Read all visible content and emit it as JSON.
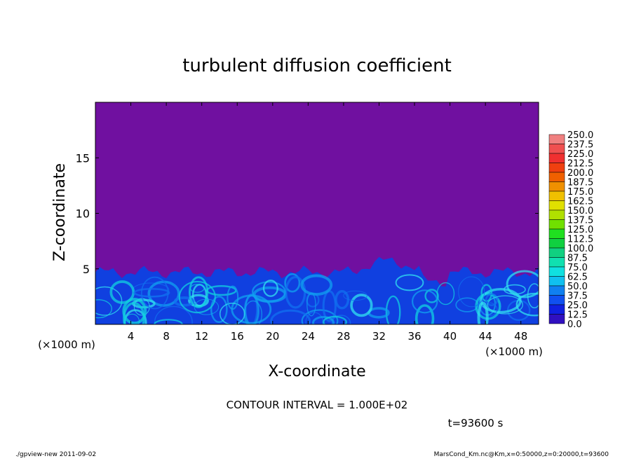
{
  "chart_data": {
    "type": "heatmap",
    "title": "turbulent diffusion coefficient",
    "xlabel": "X-coordinate",
    "ylabel": "Z-coordinate",
    "x_unit": "(×1000 m)",
    "y_unit": "(×1000 m)",
    "xlim": [
      0,
      50
    ],
    "ylim": [
      0,
      20
    ],
    "x_ticks": [
      4,
      8,
      12,
      16,
      20,
      24,
      28,
      32,
      36,
      40,
      44,
      48
    ],
    "y_ticks": [
      5,
      10,
      15
    ],
    "contour_interval_text": "CONTOUR INTERVAL = 1.000E+02",
    "time_text": "t=93600 s",
    "colorbar": {
      "levels": [
        "250.0",
        "237.5",
        "225.0",
        "212.5",
        "200.0",
        "187.5",
        "175.0",
        "162.5",
        "150.0",
        "137.5",
        "125.0",
        "112.5",
        "100.0",
        "87.5",
        "75.0",
        "62.5",
        "50.0",
        "37.5",
        "25.0",
        "12.5",
        "0.0"
      ],
      "colors": [
        "#f08080",
        "#f05050",
        "#f03030",
        "#f04010",
        "#f06000",
        "#f09000",
        "#f0c000",
        "#e0e000",
        "#b0e000",
        "#70e000",
        "#20e020",
        "#10d040",
        "#10d080",
        "#10e0b0",
        "#10e0e0",
        "#10c0f0",
        "#1080f0",
        "#1050f0",
        "#1020e0",
        "#3010c0",
        "#7010a0"
      ]
    },
    "background_color": "#7010a0",
    "turbulent_layer_top_km_approx": 5
  },
  "footer": {
    "left": "./gpview-new  2011-09-02",
    "right": "MarsCond_Km.nc@Km,x=0:50000,z=0:20000,t=93600"
  }
}
